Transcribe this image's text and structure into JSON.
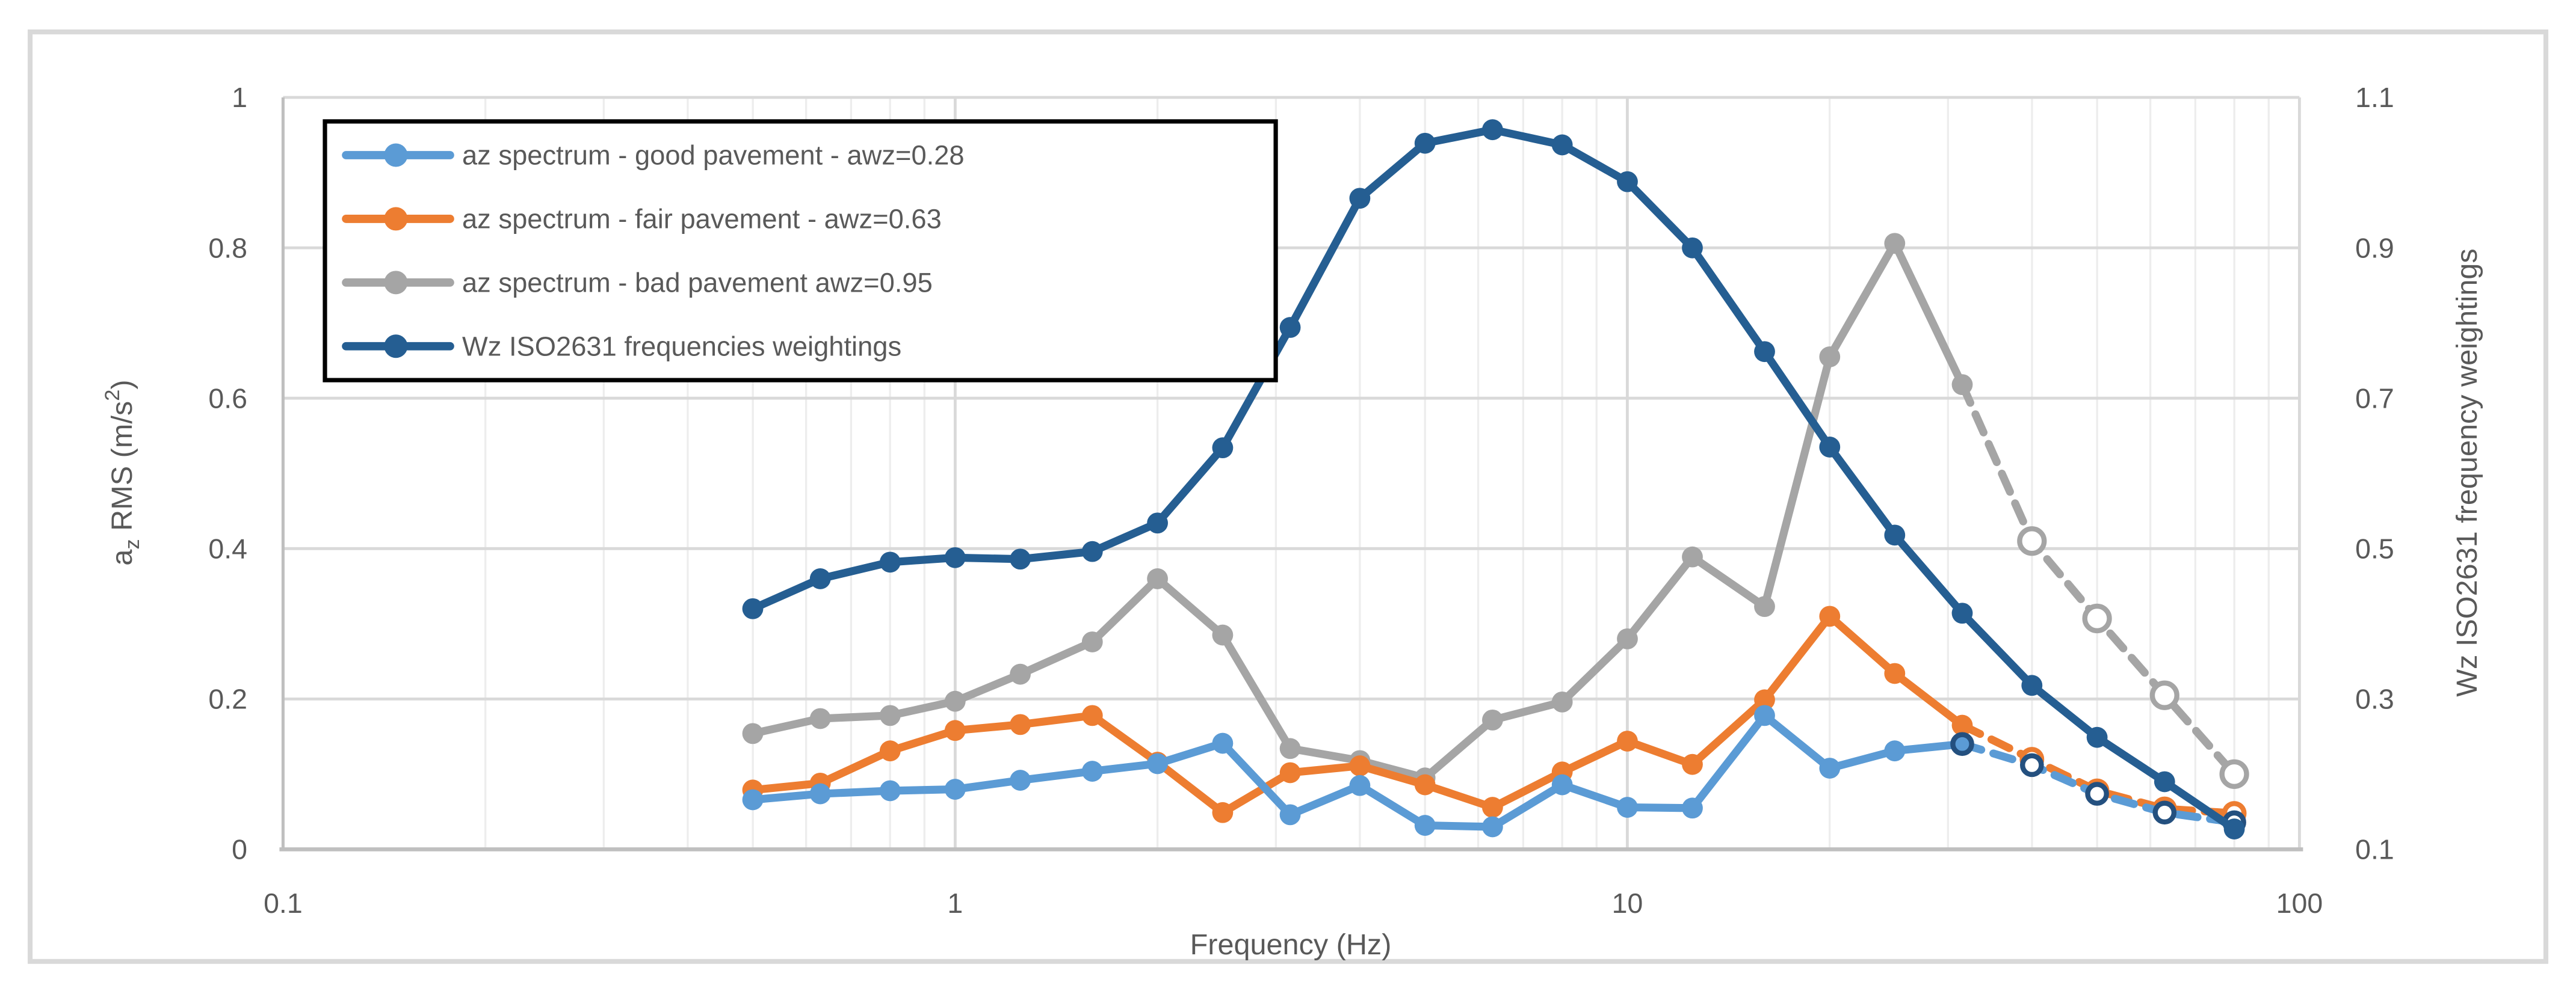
{
  "frame": {
    "background": "#FFFFFF",
    "border_color": "#D9D9D9"
  },
  "chart_data": {
    "type": "line",
    "title": "",
    "x_axis": {
      "title": "Frequency (Hz)",
      "scale": "log",
      "min": 0.1,
      "max": 100,
      "tick_values": [
        0.1,
        1,
        10,
        100
      ],
      "tick_labels": [
        "0.1",
        "1",
        "10",
        "100"
      ],
      "minor_gridlines": "multiples 2-9 of each decade",
      "major_gridline_color": "#D9D9D9",
      "minor_gridline_color": "#EDEDED",
      "axis_line_color": "#BFBFBF"
    },
    "y_left": {
      "title_text": "az RMS (m/s2)",
      "title_parts": [
        {
          "t": "a"
        },
        {
          "t": "z",
          "shift": "sub"
        },
        {
          "t": " RMS (m/s"
        },
        {
          "t": "2",
          "shift": "sup"
        },
        {
          "t": ")"
        }
      ],
      "min": 0,
      "max": 1,
      "tick_values": [
        1,
        0.8,
        0.6,
        0.4,
        0.2,
        0
      ],
      "tick_labels": [
        "1",
        "0.8",
        "0.6",
        "0.4",
        "0.2",
        "0"
      ]
    },
    "y_right": {
      "title": "Wz ISO2631 frequency weightings",
      "min": 0.1,
      "max": 1.1,
      "tick_values": [
        1.1,
        0.9,
        0.7,
        0.5,
        0.3,
        0.1
      ],
      "tick_labels": [
        "1.1",
        "0.9",
        "0.7",
        "0.5",
        "0.3",
        "0.1"
      ]
    },
    "frequencies_hz": [
      0.5,
      0.63,
      0.8,
      1,
      1.25,
      1.6,
      2,
      2.5,
      3.15,
      4,
      5,
      6.3,
      8,
      10,
      12.5,
      16,
      20,
      25,
      31.5,
      40,
      50,
      63,
      80
    ],
    "series": [
      {
        "id": "good",
        "legend_label": "az spectrum - good pavement - awz=0.28",
        "color": "#5B9BD5",
        "axis": "left",
        "values": [
          0.066,
          0.074,
          0.078,
          0.08,
          0.092,
          0.104,
          0.114,
          0.141,
          0.046,
          0.085,
          0.032,
          0.03,
          0.086,
          0.056,
          0.055,
          0.178,
          0.108,
          0.131,
          0.14,
          0.112,
          0.074,
          0.049,
          0.036
        ],
        "dashed_from_index": 18,
        "open_markers_from_index": 19,
        "extra_open_marker_index": 18,
        "open_marker_stroke": "#24507F",
        "open_marker_radius": 5.2
      },
      {
        "id": "fair",
        "legend_label": "az spectrum - fair pavement - awz=0.63",
        "color": "#ED7D31",
        "axis": "left",
        "values": [
          0.079,
          0.088,
          0.131,
          0.158,
          0.166,
          0.178,
          0.116,
          0.049,
          0.102,
          0.111,
          0.086,
          0.056,
          0.103,
          0.144,
          0.113,
          0.199,
          0.31,
          0.234,
          0.165,
          0.12,
          0.078,
          0.054,
          0.048
        ],
        "dashed_from_index": 18,
        "open_markers_from_index": 19,
        "open_marker_stroke": "#ED7D31",
        "open_marker_radius": 5.4
      },
      {
        "id": "bad",
        "legend_label": "az spectrum - bad pavement awz=0.95",
        "color": "#A5A5A5",
        "axis": "left",
        "values": [
          0.154,
          0.174,
          0.178,
          0.197,
          0.233,
          0.276,
          0.36,
          0.285,
          0.134,
          0.118,
          0.095,
          0.172,
          0.196,
          0.28,
          0.389,
          0.323,
          0.655,
          0.806,
          0.618,
          0.41,
          0.307,
          0.205,
          0.1
        ],
        "dashed_from_index": 18,
        "open_markers_from_index": 19,
        "open_marker_stroke": "#A5A5A5",
        "open_marker_radius": 6.8
      },
      {
        "id": "wz",
        "legend_label": "Wz ISO2631 frequencies weightings",
        "color": "#255E92",
        "axis": "right",
        "values": [
          0.42,
          0.46,
          0.482,
          0.488,
          0.486,
          0.496,
          0.534,
          0.634,
          0.794,
          0.966,
          1.039,
          1.057,
          1.037,
          0.988,
          0.9,
          0.762,
          0.635,
          0.518,
          0.414,
          0.318,
          0.249,
          0.19,
          0.127
        ]
      }
    ],
    "legend": {
      "position": "top-left",
      "border_color": "#000000",
      "background": "#FFFFFF"
    },
    "layout_hints": {
      "grid": "on",
      "marker": "filled circles, open circles on dashed extrapolated tail",
      "dashed_tail_frequencies": [
        40,
        50,
        63,
        80
      ]
    }
  }
}
